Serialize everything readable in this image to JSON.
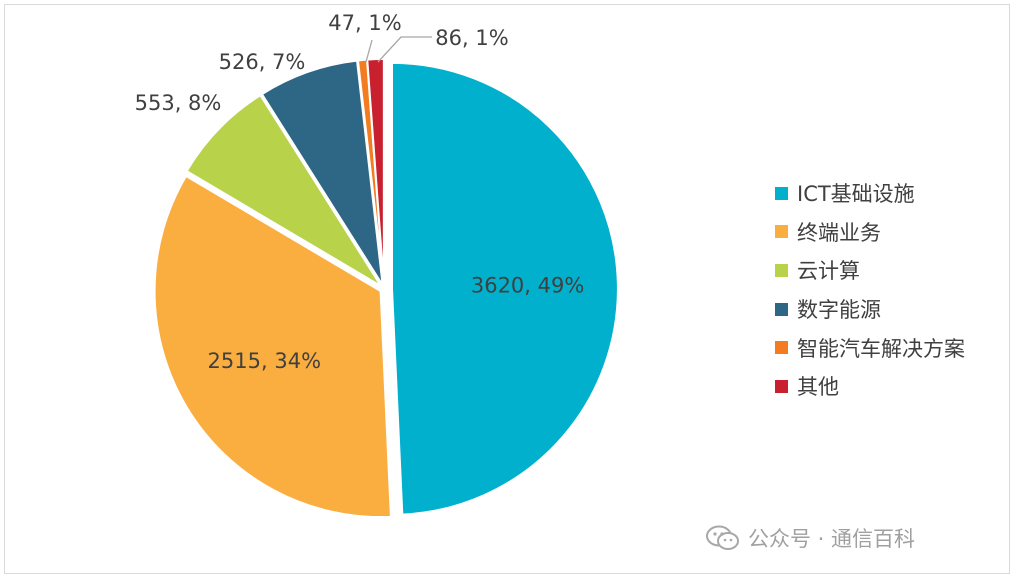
{
  "chart_data": {
    "type": "pie",
    "title": "",
    "categories": [
      "ICT基础设施",
      "终端业务",
      "云计算",
      "数字能源",
      "智能汽车解决方案",
      "其他"
    ],
    "values": [
      3620,
      2515,
      553,
      526,
      47,
      86
    ],
    "percent_labels": [
      "49%",
      "34%",
      "8%",
      "7%",
      "1%",
      "1%"
    ],
    "data_labels": [
      "3620, 49%",
      "2515, 34%",
      "553, 8%",
      "526, 7%",
      "47, 1%",
      "86, 1%"
    ],
    "colors": [
      "#00b0cd",
      "#fbae40",
      "#b8d24a",
      "#2e6685",
      "#f47c20",
      "#c8202f"
    ],
    "legend_placement": "right",
    "start_angle": "12 o'clock",
    "direction": "clockwise"
  },
  "watermark": {
    "text": "公众号 · 通信百科"
  }
}
